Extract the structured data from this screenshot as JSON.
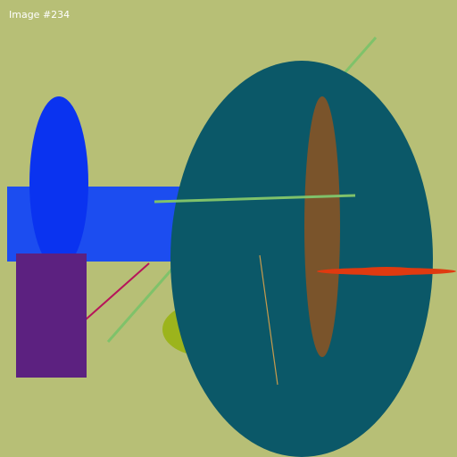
{
  "label": "Image #234",
  "colors": {
    "background": "#b7bf76",
    "blue_rect": "#1c4df0",
    "blue_ellipse": "#0a33f0",
    "purple_rect": "#5c2180",
    "teal_ellipse": "#0b5868",
    "brown_ellipse": "#7a542b",
    "olive_ellipse": "#9cb41c",
    "red_spindle": "#df3a10",
    "green_line": "#7fc26a",
    "magenta_line": "#b7145a",
    "tan_line": "#c79a4c",
    "label_text": "#ffffff"
  }
}
